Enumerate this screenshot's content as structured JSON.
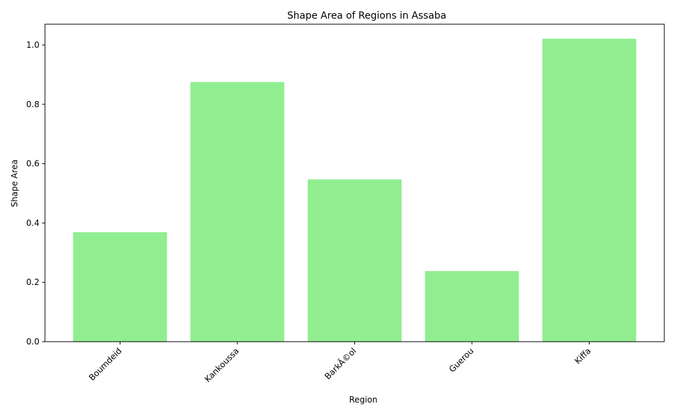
{
  "chart_data": {
    "type": "bar",
    "title": "Shape Area of Regions in Assaba",
    "xlabel": "Region",
    "ylabel": "Shape Area",
    "categories": [
      "Boumdeid",
      "Kankoussa",
      "BarkÃ©ol",
      "Guerou",
      "Kiffa"
    ],
    "values": [
      0.369,
      0.875,
      0.547,
      0.238,
      1.021
    ],
    "ylim": [
      0,
      1.07
    ],
    "yticks": [
      0.0,
      0.2,
      0.4,
      0.6,
      0.8,
      1.0
    ],
    "ytick_labels": [
      "0.0",
      "0.2",
      "0.4",
      "0.6",
      "0.8",
      "1.0"
    ],
    "bar_color": "#90EE90",
    "grid": false,
    "legend": "none"
  }
}
